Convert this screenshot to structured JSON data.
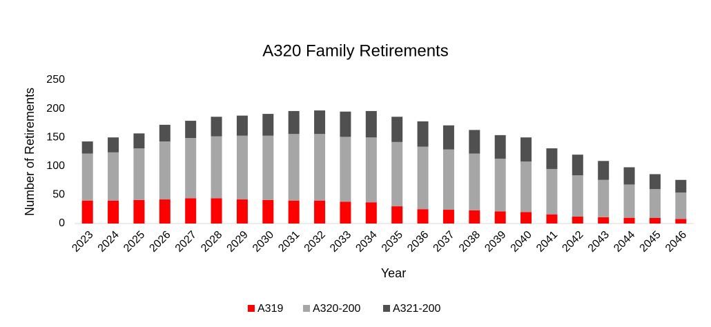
{
  "chart_data": {
    "type": "stacked-bar",
    "title": "A320 Family Retirements",
    "x_label": "Year",
    "y_label": "Number of Retirements",
    "categories": [
      "2023",
      "2024",
      "2025",
      "2026",
      "2027",
      "2028",
      "2029",
      "2030",
      "2031",
      "2032",
      "2033",
      "2034",
      "2035",
      "2036",
      "2037",
      "2038",
      "2039",
      "2040",
      "2041",
      "2042",
      "2043",
      "2044",
      "2045",
      "2046"
    ],
    "series": [
      {
        "name": "A319",
        "color": "#ff0000",
        "values": [
          40,
          40,
          41,
          42,
          44,
          44,
          42,
          41,
          40,
          40,
          38,
          37,
          30,
          25,
          24,
          23,
          21,
          20,
          16,
          12,
          11,
          10,
          10,
          8
        ]
      },
      {
        "name": "A320-200",
        "color": "#a6a6a6",
        "values": [
          82,
          84,
          90,
          101,
          105,
          108,
          111,
          112,
          116,
          116,
          113,
          113,
          112,
          109,
          105,
          99,
          92,
          88,
          79,
          72,
          65,
          58,
          50,
          46
        ]
      },
      {
        "name": "A321-200",
        "color": "#505050",
        "values": [
          21,
          26,
          26,
          29,
          30,
          34,
          35,
          38,
          40,
          41,
          44,
          46,
          44,
          44,
          42,
          41,
          41,
          42,
          36,
          36,
          33,
          30,
          26,
          22
        ]
      }
    ],
    "ylim": [
      0,
      250
    ],
    "yticks": [
      0,
      50,
      100,
      150,
      200,
      250
    ],
    "grid": false,
    "legend": "bottom"
  }
}
